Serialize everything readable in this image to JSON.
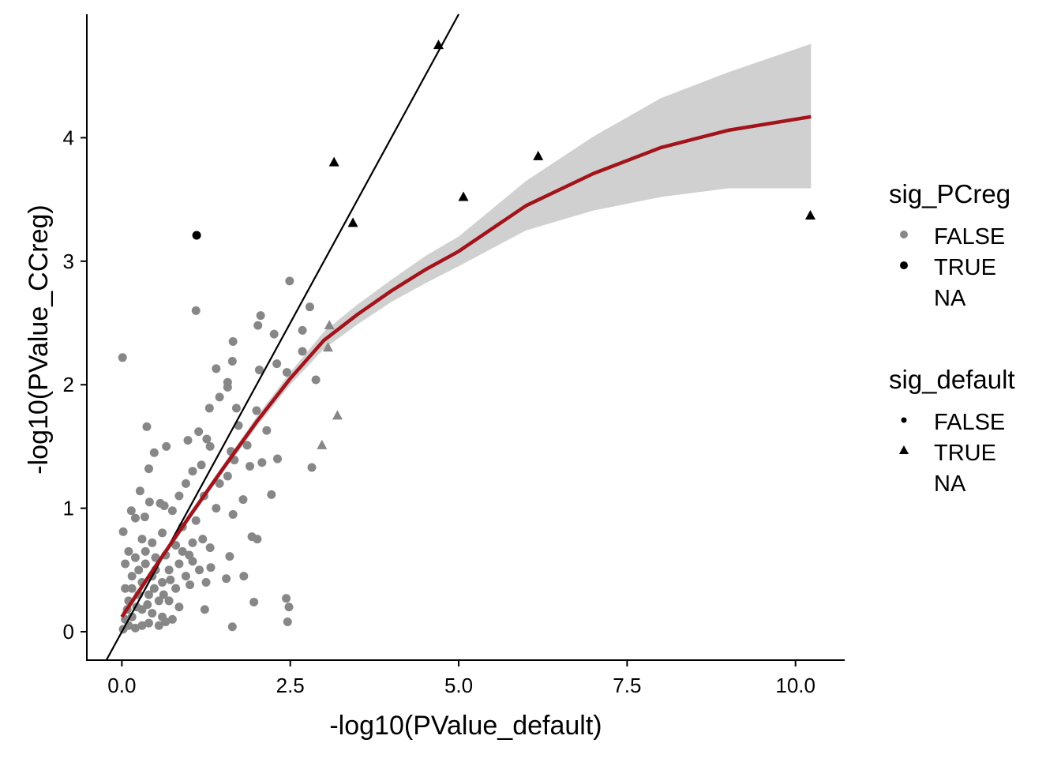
{
  "chart_data": {
    "type": "scatter",
    "xlabel": "-log10(PValue_default)",
    "ylabel": "-log10(PValue_CCreg)",
    "xlim": [
      -0.52,
      10.73
    ],
    "ylim": [
      -0.23,
      5.0
    ],
    "x_ticks": [
      {
        "value": 0,
        "label": "0.0"
      },
      {
        "value": 2.5,
        "label": "2.5"
      },
      {
        "value": 5,
        "label": "5.0"
      },
      {
        "value": 7.5,
        "label": "7.5"
      },
      {
        "value": 10,
        "label": "10.0"
      }
    ],
    "y_ticks": [
      {
        "value": 0,
        "label": "0"
      },
      {
        "value": 1,
        "label": "1"
      },
      {
        "value": 2,
        "label": "2"
      },
      {
        "value": 3,
        "label": "3"
      },
      {
        "value": 4,
        "label": "4"
      }
    ],
    "grid": false,
    "colors": {
      "FALSE": "#878787",
      "TRUE": "#000000",
      "fit": "#A3131B",
      "ribbon": "#D0D0D0",
      "reference": "#000000"
    },
    "reference_line": {
      "slope": 1,
      "intercept": 0
    },
    "smooth": {
      "x": [
        0,
        0.5,
        1,
        1.5,
        2,
        2.5,
        3,
        3.5,
        4,
        4.5,
        5,
        6,
        7,
        8,
        9,
        10.23
      ],
      "fit": [
        0.12,
        0.53,
        0.93,
        1.32,
        1.7,
        2.05,
        2.36,
        2.57,
        2.76,
        2.93,
        3.08,
        3.45,
        3.71,
        3.92,
        4.06,
        4.17
      ],
      "lower": [
        0.08,
        0.5,
        0.9,
        1.29,
        1.66,
        2.0,
        2.29,
        2.49,
        2.67,
        2.82,
        2.96,
        3.25,
        3.41,
        3.52,
        3.59,
        3.59
      ],
      "upper": [
        0.16,
        0.56,
        0.96,
        1.35,
        1.74,
        2.1,
        2.43,
        2.65,
        2.85,
        3.04,
        3.2,
        3.65,
        4.01,
        4.32,
        4.53,
        4.76
      ]
    },
    "groups": [
      {
        "sig_PCreg": "FALSE",
        "sig_default": "FALSE",
        "shape": "circle",
        "points": [
          [
            2.49,
            2.84
          ],
          [
            1.1,
            2.6
          ],
          [
            0.01,
            2.22
          ],
          [
            2.79,
            2.63
          ],
          [
            2.06,
            2.56
          ],
          [
            2.02,
            2.48
          ],
          [
            2.26,
            2.41
          ],
          [
            2.68,
            2.44
          ],
          [
            1.65,
            2.35
          ],
          [
            2.68,
            2.27
          ],
          [
            1.4,
            2.13
          ],
          [
            1.64,
            2.19
          ],
          [
            2.3,
            2.17
          ],
          [
            2.04,
            2.12
          ],
          [
            2.45,
            2.1
          ],
          [
            2.88,
            2.04
          ],
          [
            1.57,
            2.02
          ],
          [
            1.57,
            1.98
          ],
          [
            1.45,
            1.9
          ],
          [
            1.3,
            1.81
          ],
          [
            1.7,
            1.81
          ],
          [
            2.0,
            1.79
          ],
          [
            1.73,
            1.67
          ],
          [
            0.37,
            1.66
          ],
          [
            1.14,
            1.62
          ],
          [
            2.15,
            1.63
          ],
          [
            2.82,
            1.33
          ],
          [
            2.22,
            1.11
          ],
          [
            0.66,
            1.5
          ],
          [
            0.48,
            1.45
          ],
          [
            0.98,
            1.55
          ],
          [
            1.26,
            1.56
          ],
          [
            1.31,
            1.5
          ],
          [
            2.08,
            1.37
          ],
          [
            2.31,
            1.4
          ],
          [
            1.86,
            1.51
          ],
          [
            1.62,
            1.46
          ],
          [
            1.67,
            1.39
          ],
          [
            1.57,
            1.26
          ],
          [
            1.9,
            1.34
          ],
          [
            1.8,
            1.07
          ],
          [
            1.65,
            0.95
          ],
          [
            1.93,
            0.77
          ],
          [
            2.01,
            0.75
          ],
          [
            1.6,
            0.61
          ],
          [
            1.81,
            0.45
          ],
          [
            1.55,
            0.43
          ],
          [
            1.96,
            0.24
          ],
          [
            2.44,
            0.27
          ],
          [
            2.48,
            0.2
          ],
          [
            2.46,
            0.08
          ],
          [
            1.64,
            0.04
          ],
          [
            1.23,
            0.18
          ],
          [
            1.32,
            0.52
          ],
          [
            1.31,
            0.68
          ],
          [
            1.05,
            0.57
          ],
          [
            1.01,
            0.38
          ],
          [
            0.4,
            1.32
          ],
          [
            0.27,
            1.14
          ],
          [
            0.41,
            1.05
          ],
          [
            0.14,
            0.98
          ],
          [
            0.2,
            0.92
          ],
          [
            0.34,
            0.93
          ],
          [
            0.02,
            0.81
          ],
          [
            0.63,
            1.02
          ],
          [
            0.57,
            1.04
          ],
          [
            0.95,
            1.2
          ],
          [
            1.05,
            1.3
          ],
          [
            0.85,
            1.1
          ],
          [
            1.18,
            1.35
          ],
          [
            1.22,
            1.1
          ],
          [
            0.75,
            0.98
          ],
          [
            0.9,
            0.85
          ],
          [
            1.1,
            0.9
          ],
          [
            1.4,
            1.0
          ],
          [
            1.45,
            1.2
          ],
          [
            1.2,
            0.75
          ],
          [
            1.05,
            0.72
          ],
          [
            0.8,
            0.7
          ],
          [
            0.6,
            0.8
          ],
          [
            0.45,
            0.72
          ],
          [
            0.3,
            0.75
          ],
          [
            0.1,
            0.65
          ],
          [
            0.05,
            0.55
          ],
          [
            0.2,
            0.6
          ],
          [
            0.35,
            0.55
          ],
          [
            0.5,
            0.6
          ],
          [
            0.65,
            0.62
          ],
          [
            0.7,
            0.5
          ],
          [
            0.85,
            0.55
          ],
          [
            0.95,
            0.45
          ],
          [
            0.8,
            0.35
          ],
          [
            0.6,
            0.4
          ],
          [
            0.45,
            0.45
          ],
          [
            0.3,
            0.4
          ],
          [
            0.15,
            0.45
          ],
          [
            0.05,
            0.35
          ],
          [
            0.1,
            0.25
          ],
          [
            0.25,
            0.3
          ],
          [
            0.4,
            0.3
          ],
          [
            0.55,
            0.25
          ],
          [
            0.7,
            0.25
          ],
          [
            0.85,
            0.2
          ],
          [
            0.6,
            0.12
          ],
          [
            0.45,
            0.15
          ],
          [
            0.3,
            0.18
          ],
          [
            0.15,
            0.12
          ],
          [
            0.05,
            0.1
          ],
          [
            0.02,
            0.02
          ],
          [
            0.1,
            0.05
          ],
          [
            0.2,
            0.03
          ],
          [
            0.3,
            0.05
          ],
          [
            0.4,
            0.07
          ],
          [
            0.55,
            0.05
          ],
          [
            0.65,
            0.08
          ],
          [
            0.75,
            0.1
          ],
          [
            0.25,
            0.5
          ],
          [
            0.35,
            0.65
          ],
          [
            0.5,
            0.5
          ],
          [
            0.15,
            0.35
          ],
          [
            0.08,
            0.18
          ],
          [
            0.22,
            0.2
          ],
          [
            0.38,
            0.22
          ],
          [
            0.48,
            0.35
          ],
          [
            0.62,
            0.3
          ],
          [
            0.72,
            0.42
          ],
          [
            0.9,
            0.65
          ],
          [
            1.0,
            0.62
          ],
          [
            1.15,
            0.5
          ],
          [
            1.25,
            0.4
          ]
        ]
      },
      {
        "sig_PCreg": "TRUE",
        "sig_default": "FALSE",
        "shape": "circle",
        "points": [
          [
            1.11,
            3.21
          ]
        ]
      },
      {
        "sig_PCreg": "FALSE",
        "sig_default": "TRUE",
        "shape": "triangle",
        "points": [
          [
            3.08,
            2.48
          ],
          [
            3.06,
            2.3
          ],
          [
            3.2,
            1.75
          ],
          [
            2.97,
            1.51
          ]
        ]
      },
      {
        "sig_PCreg": "TRUE",
        "sig_default": "TRUE",
        "shape": "triangle",
        "points": [
          [
            4.7,
            4.75
          ],
          [
            3.15,
            3.8
          ],
          [
            3.43,
            3.31
          ],
          [
            5.07,
            3.52
          ],
          [
            6.18,
            3.85
          ],
          [
            10.22,
            3.37
          ]
        ]
      }
    ],
    "legends": [
      {
        "title": "sig_PCreg",
        "entries": [
          {
            "label": "FALSE",
            "key": "circle-gray"
          },
          {
            "label": "TRUE",
            "key": "circle-black"
          },
          {
            "label": "NA",
            "key": "none"
          }
        ]
      },
      {
        "title": "sig_default",
        "entries": [
          {
            "label": "FALSE",
            "key": "circle-small-black"
          },
          {
            "label": "TRUE",
            "key": "triangle-black"
          },
          {
            "label": "NA",
            "key": "none"
          }
        ]
      }
    ],
    "legend_placement": "right"
  }
}
